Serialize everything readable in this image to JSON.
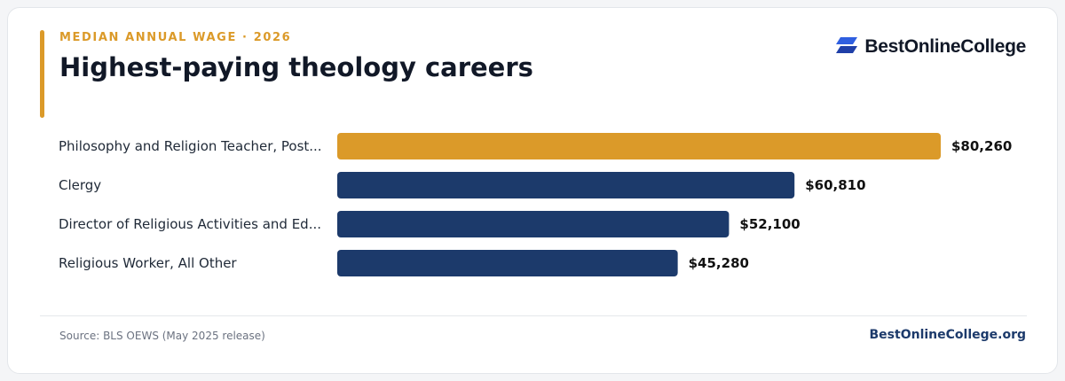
{
  "header": {
    "eyebrow": "MEDIAN ANNUAL WAGE · 2026",
    "title": "Highest-paying theology careers"
  },
  "brand": {
    "name": "BestOnlineCollege",
    "logo_icon": "stacked-parallelograms-icon"
  },
  "colors": {
    "accent": "#db9a29",
    "navy": "#1c3a6b",
    "label": "#1f2937",
    "value": "#111111"
  },
  "chart_data": {
    "type": "bar",
    "orientation": "horizontal",
    "title": "Highest-paying theology careers",
    "categories": [
      "Philosophy and Religion Teacher, Post...",
      "Clergy",
      "Director of Religious Activities and Ed...",
      "Religious Worker, All Other"
    ],
    "values": [
      80260,
      60810,
      52100,
      45280
    ],
    "value_labels": [
      "$80,260",
      "$60,810",
      "$52,100",
      "$45,280"
    ],
    "highlight_index": 0,
    "xlim": [
      0,
      80260
    ],
    "grid": false,
    "legend": "none"
  },
  "footer": {
    "source": "Source: BLS OEWS (May 2025 release)",
    "site": "BestOnlineCollege.org"
  }
}
